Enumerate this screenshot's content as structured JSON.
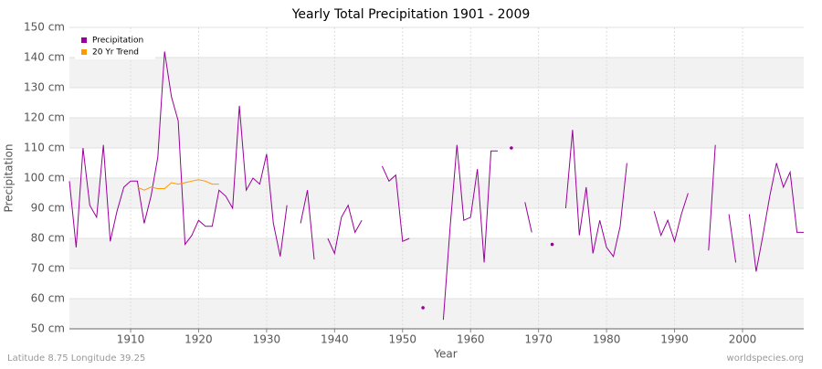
{
  "chart_data": {
    "type": "line",
    "title": "Yearly Total Precipitation 1901 - 2009",
    "x_label": "Year",
    "y_label": "Precipitation",
    "footer_left": "Latitude 8.75 Longitude 39.25",
    "footer_right": "worldspecies.org",
    "x": [
      1901,
      1902,
      1903,
      1904,
      1905,
      1906,
      1907,
      1908,
      1909,
      1910,
      1911,
      1912,
      1913,
      1914,
      1915,
      1916,
      1917,
      1918,
      1919,
      1920,
      1921,
      1922,
      1923,
      1924,
      1925,
      1926,
      1927,
      1928,
      1929,
      1930,
      1931,
      1932,
      1933,
      1934,
      1935,
      1936,
      1937,
      1938,
      1939,
      1940,
      1941,
      1942,
      1943,
      1944,
      1945,
      1946,
      1947,
      1948,
      1949,
      1950,
      1951,
      1952,
      1953,
      1954,
      1955,
      1956,
      1957,
      1958,
      1959,
      1960,
      1961,
      1962,
      1963,
      1964,
      1965,
      1966,
      1967,
      1968,
      1969,
      1970,
      1971,
      1972,
      1973,
      1974,
      1975,
      1976,
      1977,
      1978,
      1979,
      1980,
      1981,
      1982,
      1983,
      1984,
      1985,
      1986,
      1987,
      1988,
      1989,
      1990,
      1991,
      1992,
      1993,
      1994,
      1995,
      1996,
      1997,
      1998,
      1999,
      2000,
      2001,
      2002,
      2003,
      2004,
      2005,
      2006,
      2007,
      2008,
      2009
    ],
    "series": [
      {
        "name": "Precipitation",
        "color": "#990099",
        "values": [
          99,
          77,
          110,
          91,
          87,
          111,
          79,
          89,
          97,
          99,
          99,
          85,
          94,
          107,
          142,
          127,
          119,
          78,
          81,
          86,
          84,
          84,
          96,
          94,
          90,
          124,
          96,
          100,
          98,
          108,
          85,
          74,
          91,
          null,
          85,
          96,
          73,
          null,
          80,
          75,
          87,
          91,
          82,
          86,
          null,
          null,
          104,
          99,
          101,
          79,
          80,
          null,
          57,
          null,
          null,
          53,
          84,
          111,
          86,
          87,
          103,
          72,
          109,
          109,
          null,
          110,
          null,
          92,
          82,
          null,
          null,
          78,
          null,
          90,
          116,
          81,
          97,
          75,
          86,
          77,
          74,
          84,
          105,
          null,
          null,
          null,
          89,
          81,
          86,
          79,
          88,
          95,
          null,
          null,
          76,
          111,
          null,
          88,
          72,
          null,
          88,
          69,
          81,
          94,
          105,
          97,
          102,
          82,
          82
        ]
      },
      {
        "name": "20 Yr Trend",
        "color": "#ff9900",
        "values": [
          null,
          null,
          null,
          null,
          null,
          null,
          null,
          null,
          null,
          null,
          97,
          96,
          97,
          96.5,
          96.5,
          98.5,
          98,
          98.5,
          99,
          99.5,
          99,
          98,
          98,
          null,
          null,
          null,
          null,
          null,
          null,
          null,
          null,
          null,
          null,
          null,
          null,
          null,
          null,
          null,
          null,
          null,
          null,
          null,
          null,
          null,
          null,
          null,
          null,
          null,
          null,
          null,
          null,
          null,
          null,
          null,
          null,
          null,
          null,
          null,
          null,
          null,
          null,
          null,
          null,
          null,
          null,
          null,
          null,
          null,
          null,
          null,
          null,
          null,
          null,
          null,
          null,
          null,
          null,
          null,
          null,
          null,
          null,
          null,
          null,
          null,
          null,
          null,
          null,
          null,
          null,
          null,
          null,
          null,
          null,
          null,
          null,
          null,
          null,
          null,
          null,
          null,
          null,
          null,
          null,
          null,
          null,
          null,
          null,
          null,
          null
        ]
      }
    ],
    "xlim": [
      1901,
      2009
    ],
    "xticks": [
      1910,
      1920,
      1930,
      1940,
      1950,
      1960,
      1970,
      1980,
      1990,
      2000
    ],
    "ylim": [
      50,
      150
    ],
    "yticks": [
      {
        "value": 50,
        "label": "50 cm"
      },
      {
        "value": 60,
        "label": "60 cm"
      },
      {
        "value": 70,
        "label": "70 cm"
      },
      {
        "value": 80,
        "label": "80 cm"
      },
      {
        "value": 90,
        "label": "90 cm"
      },
      {
        "value": 100,
        "label": "100 cm"
      },
      {
        "value": 110,
        "label": "110 cm"
      },
      {
        "value": 120,
        "label": "120 cm"
      },
      {
        "value": 130,
        "label": "130 cm"
      },
      {
        "value": 140,
        "label": "140 cm"
      },
      {
        "value": 150,
        "label": "150 cm"
      }
    ],
    "grid": true,
    "legend": "top-left"
  }
}
